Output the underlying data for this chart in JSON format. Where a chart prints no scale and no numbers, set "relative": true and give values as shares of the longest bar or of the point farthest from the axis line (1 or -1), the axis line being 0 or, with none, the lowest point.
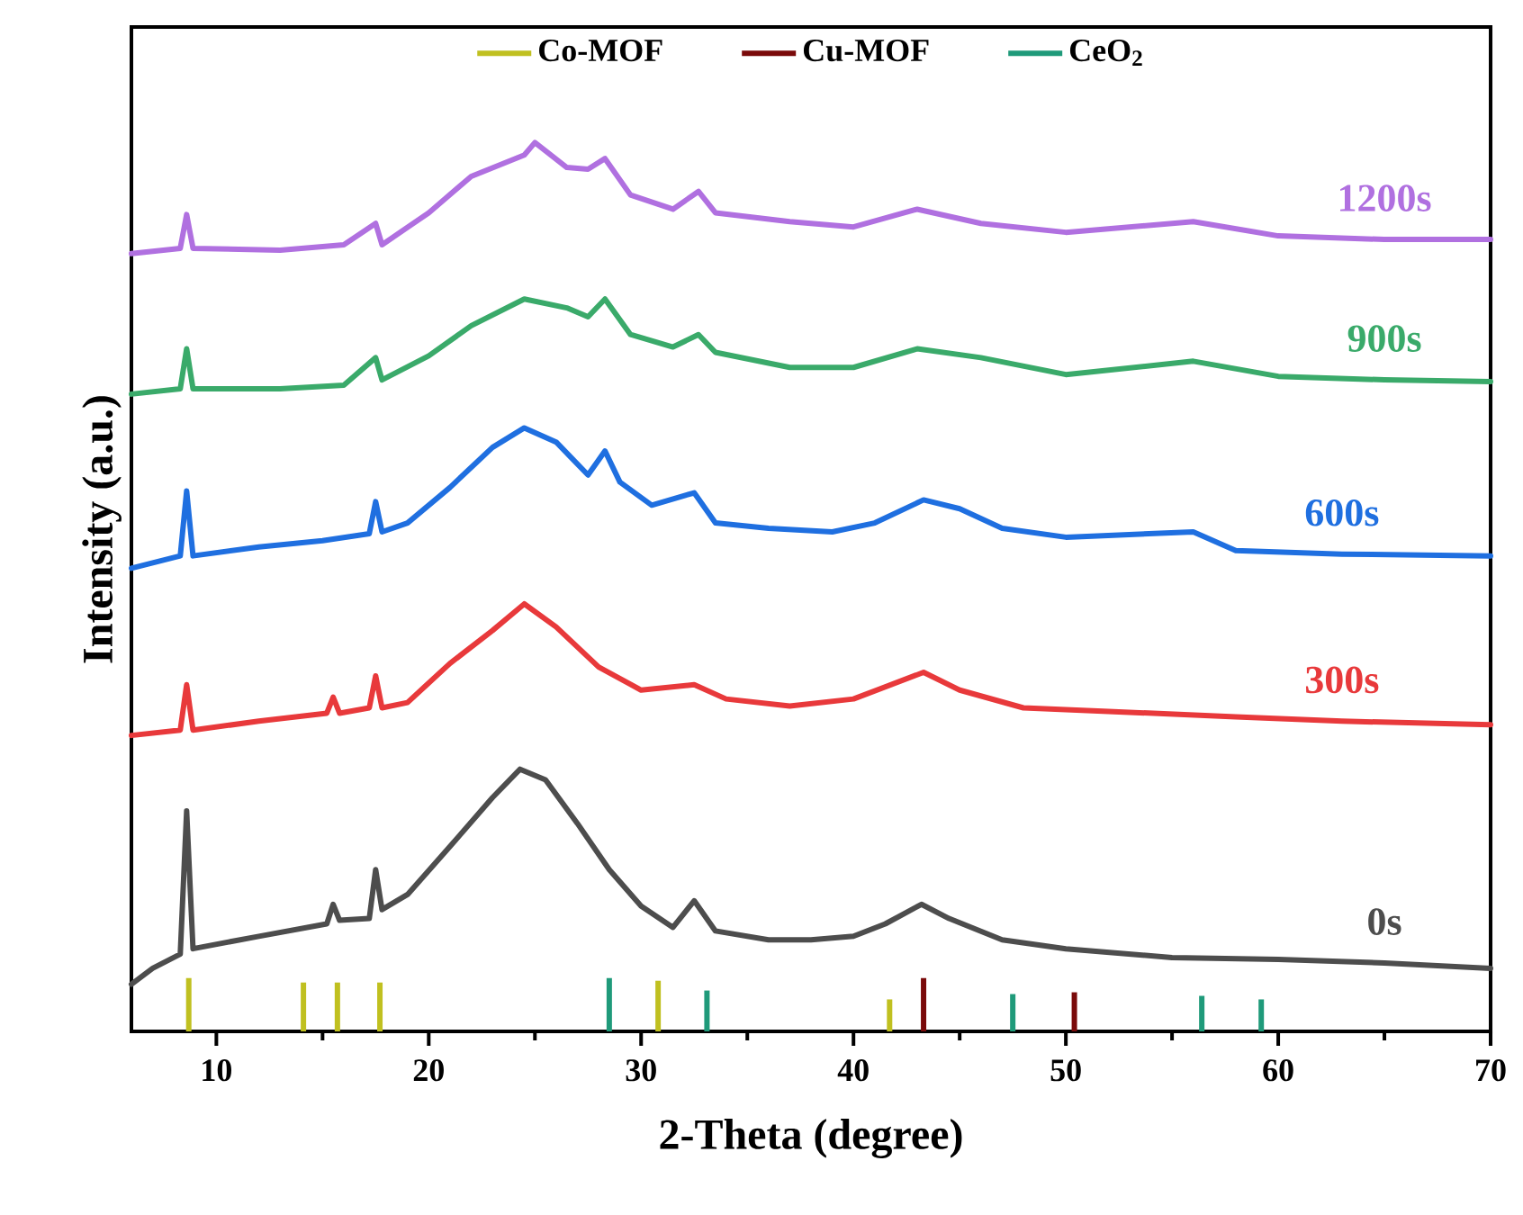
{
  "chart_data": {
    "type": "line",
    "relative": true,
    "xlabel": "2-Theta (degree)",
    "ylabel": "Intensity (a.u.)",
    "xlim": [
      6,
      70
    ],
    "xticks": [
      10,
      20,
      30,
      40,
      50,
      60,
      70
    ],
    "legend": "top",
    "series": [
      {
        "name": "0s",
        "color": "#4d4d4d",
        "x": [
          6,
          7,
          8.3,
          8.6,
          8.9,
          12,
          15.2,
          15.5,
          15.8,
          17.2,
          17.5,
          17.8,
          19,
          21,
          23,
          24.3,
          25.5,
          27,
          28.5,
          30,
          31.5,
          32.5,
          33.5,
          36,
          38,
          40,
          41.5,
          43.2,
          44.5,
          47,
          50,
          55,
          60,
          65,
          70
        ],
        "values": [
          0.053,
          0.071,
          0.087,
          0.248,
          0.093,
          0.107,
          0.121,
          0.143,
          0.125,
          0.127,
          0.182,
          0.137,
          0.154,
          0.208,
          0.263,
          0.295,
          0.283,
          0.234,
          0.182,
          0.141,
          0.117,
          0.147,
          0.113,
          0.103,
          0.103,
          0.107,
          0.121,
          0.143,
          0.127,
          0.103,
          0.093,
          0.083,
          0.081,
          0.077,
          0.071
        ]
      },
      {
        "name": "300s",
        "color": "#e8393b",
        "x": [
          6,
          8.3,
          8.6,
          8.9,
          12,
          15.2,
          15.5,
          15.8,
          17.2,
          17.5,
          17.8,
          19,
          21,
          23,
          24.5,
          26,
          28,
          30,
          32.5,
          34,
          37,
          40,
          43.3,
          45,
          48,
          52,
          58,
          63,
          70
        ],
        "values": [
          0.333,
          0.339,
          0.39,
          0.339,
          0.349,
          0.358,
          0.376,
          0.358,
          0.364,
          0.4,
          0.364,
          0.37,
          0.414,
          0.451,
          0.481,
          0.455,
          0.41,
          0.384,
          0.39,
          0.374,
          0.366,
          0.374,
          0.404,
          0.384,
          0.364,
          0.36,
          0.354,
          0.349,
          0.345
        ]
      },
      {
        "name": "600s",
        "color": "#1f6fe0",
        "x": [
          6,
          8.3,
          8.6,
          8.9,
          12,
          15,
          17.2,
          17.5,
          17.8,
          19,
          21,
          23,
          24.5,
          26,
          27.5,
          28.3,
          29,
          30.5,
          32.5,
          33.5,
          36,
          39,
          41,
          43.3,
          45,
          47,
          50,
          56,
          58,
          63,
          70
        ],
        "values": [
          0.521,
          0.535,
          0.608,
          0.535,
          0.545,
          0.552,
          0.56,
          0.596,
          0.562,
          0.572,
          0.612,
          0.657,
          0.679,
          0.663,
          0.626,
          0.653,
          0.618,
          0.592,
          0.606,
          0.572,
          0.566,
          0.562,
          0.572,
          0.598,
          0.588,
          0.566,
          0.556,
          0.562,
          0.541,
          0.537,
          0.535
        ]
      },
      {
        "name": "900s",
        "color": "#3aaa6a",
        "x": [
          6,
          8.3,
          8.6,
          8.9,
          13,
          16,
          17.5,
          17.8,
          20,
          22,
          24.5,
          26.5,
          27.5,
          28.3,
          29.5,
          31.5,
          32.7,
          33.5,
          37,
          40,
          43,
          46,
          50,
          56,
          60,
          65,
          70
        ],
        "values": [
          0.717,
          0.723,
          0.768,
          0.723,
          0.723,
          0.727,
          0.758,
          0.733,
          0.76,
          0.794,
          0.824,
          0.814,
          0.804,
          0.824,
          0.784,
          0.77,
          0.784,
          0.764,
          0.747,
          0.747,
          0.768,
          0.758,
          0.739,
          0.754,
          0.737,
          0.733,
          0.731
        ]
      },
      {
        "name": "1200s",
        "color": "#b070e0",
        "x": [
          6,
          8.3,
          8.6,
          8.9,
          13,
          16,
          17.5,
          17.8,
          20,
          22,
          24.5,
          25,
          26.5,
          27.5,
          28.3,
          29.5,
          31.5,
          32.7,
          33.5,
          37,
          40,
          43,
          46,
          50,
          56,
          60,
          65,
          70
        ],
        "values": [
          0.875,
          0.881,
          0.919,
          0.881,
          0.879,
          0.885,
          0.909,
          0.885,
          0.921,
          0.962,
          0.986,
          1.0,
          0.972,
          0.97,
          0.982,
          0.941,
          0.925,
          0.945,
          0.921,
          0.911,
          0.905,
          0.925,
          0.909,
          0.899,
          0.911,
          0.895,
          0.891,
          0.891
        ]
      },
      {
        "name": "Co-MOF",
        "type": "bar",
        "color": "#c0c020",
        "x": [
          8.7,
          14.1,
          15.7,
          17.7,
          30.8,
          41.7
        ],
        "values": [
          0.06,
          0.055,
          0.055,
          0.055,
          0.057,
          0.036
        ]
      },
      {
        "name": "Cu-MOF",
        "type": "bar",
        "color": "#7a0a0a",
        "x": [
          43.3,
          50.4
        ],
        "values": [
          0.06,
          0.044
        ]
      },
      {
        "name": "CeO$_{2}$",
        "type": "bar",
        "color": "#1f9a7a",
        "x": [
          28.5,
          33.1,
          47.5,
          56.4,
          59.2
        ],
        "values": [
          0.06,
          0.046,
          0.042,
          0.04,
          0.036
        ]
      }
    ]
  }
}
